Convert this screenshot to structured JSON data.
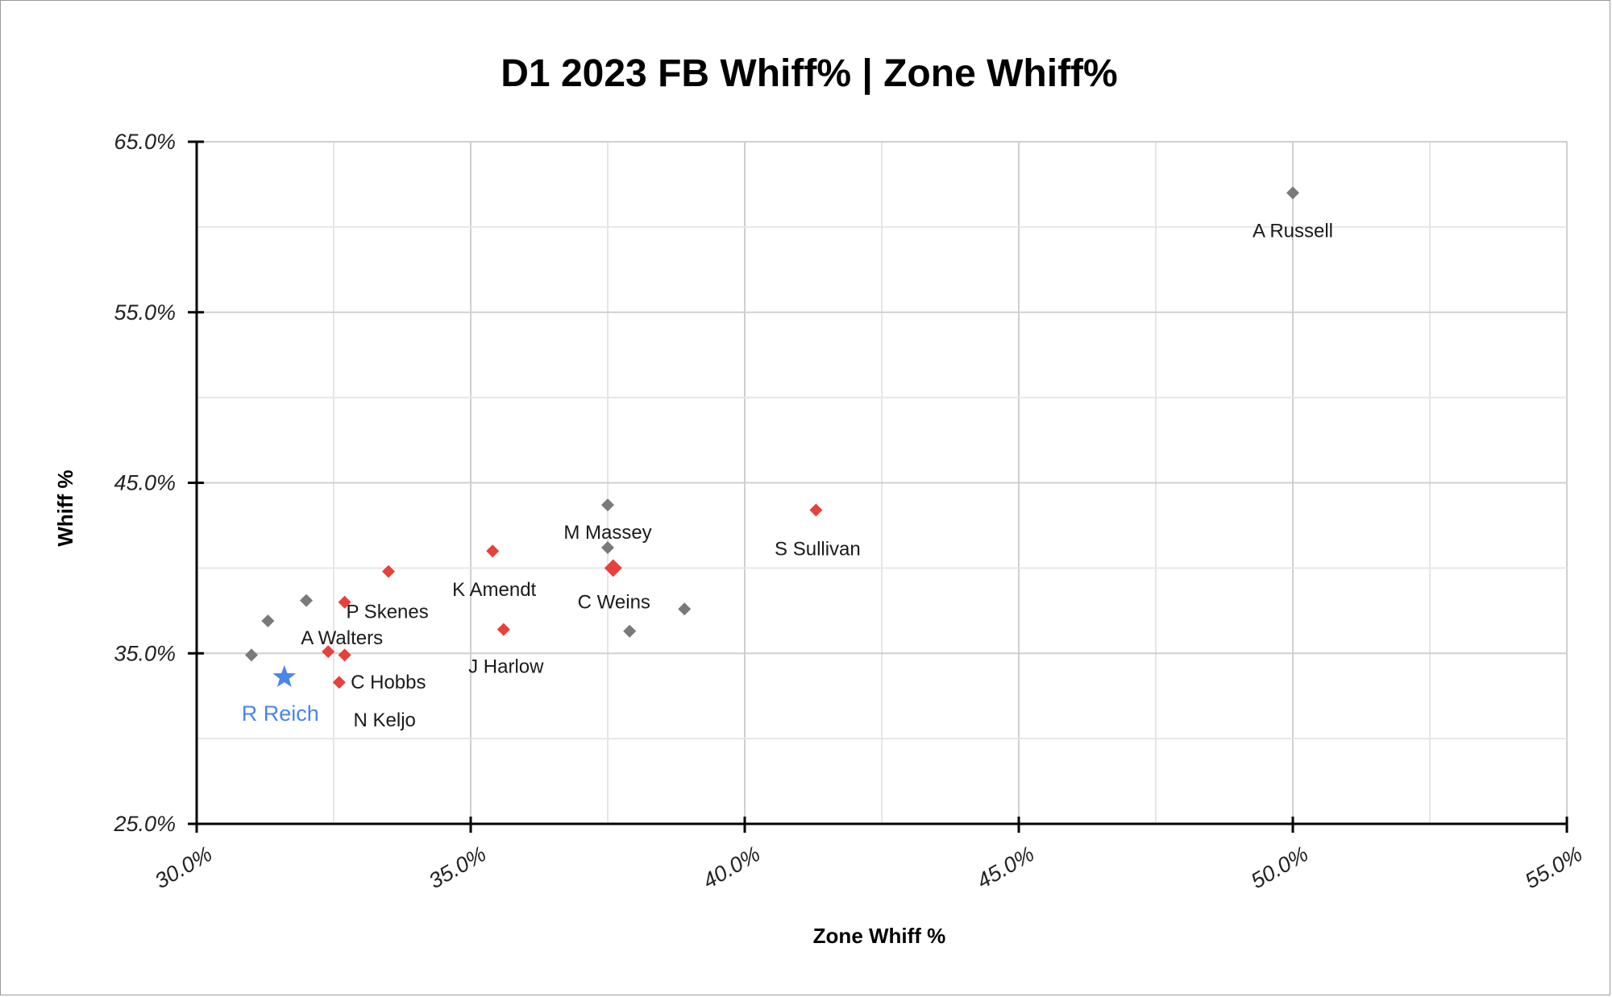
{
  "chart_data": {
    "type": "scatter",
    "title": "D1 2023 FB Whiff% | Zone Whiff%",
    "xlabel": "Zone Whiff %",
    "ylabel": "Whiff %",
    "xlim": [
      30,
      55
    ],
    "ylim": [
      25,
      65
    ],
    "x_ticks": [
      {
        "value": 30,
        "label": "30.0%"
      },
      {
        "value": 35,
        "label": "35.0%"
      },
      {
        "value": 40,
        "label": "40.0%"
      },
      {
        "value": 45,
        "label": "45.0%"
      },
      {
        "value": 50,
        "label": "50.0%"
      },
      {
        "value": 55,
        "label": "55.0%"
      }
    ],
    "y_ticks": [
      {
        "value": 25,
        "label": "25.0%"
      },
      {
        "value": 35,
        "label": "35.0%"
      },
      {
        "value": 45,
        "label": "45.0%"
      },
      {
        "value": 55,
        "label": "55.0%"
      },
      {
        "value": 65,
        "label": "65.0%"
      }
    ],
    "grid": true,
    "legend": "none",
    "colors": {
      "gray": "#7a7a7a",
      "red": "#e8403a",
      "blue": "#4a86e8",
      "grid": "#d9d9d9",
      "axis": "#000000"
    },
    "points": [
      {
        "x": 50.0,
        "y": 62.0,
        "color": "gray",
        "marker": "diamond",
        "label": "A Russell"
      },
      {
        "x": 37.5,
        "y": 43.7,
        "color": "gray",
        "marker": "diamond",
        "label": "M Massey"
      },
      {
        "x": 37.5,
        "y": 41.2,
        "color": "gray",
        "marker": "diamond",
        "label": ""
      },
      {
        "x": 38.9,
        "y": 37.6,
        "color": "gray",
        "marker": "diamond",
        "label": ""
      },
      {
        "x": 37.9,
        "y": 36.3,
        "color": "gray",
        "marker": "diamond",
        "label": ""
      },
      {
        "x": 32.0,
        "y": 38.1,
        "color": "gray",
        "marker": "diamond",
        "label": ""
      },
      {
        "x": 31.3,
        "y": 36.9,
        "color": "gray",
        "marker": "diamond",
        "label": ""
      },
      {
        "x": 31.0,
        "y": 34.9,
        "color": "gray",
        "marker": "diamond",
        "label": ""
      },
      {
        "x": 41.3,
        "y": 43.4,
        "color": "red",
        "marker": "diamond",
        "label": "S Sullivan"
      },
      {
        "x": 37.6,
        "y": 40.0,
        "color": "red",
        "marker": "diamond-large",
        "label": "C Weins"
      },
      {
        "x": 35.4,
        "y": 41.0,
        "color": "red",
        "marker": "diamond",
        "label": "K Amendt"
      },
      {
        "x": 35.6,
        "y": 36.4,
        "color": "red",
        "marker": "diamond",
        "label": "J Harlow"
      },
      {
        "x": 33.5,
        "y": 39.8,
        "color": "red",
        "marker": "diamond",
        "label": ""
      },
      {
        "x": 32.7,
        "y": 38.0,
        "color": "red",
        "marker": "diamond",
        "label": "P Skenes"
      },
      {
        "x": 32.4,
        "y": 35.1,
        "color": "red",
        "marker": "diamond",
        "label": "A Walters"
      },
      {
        "x": 32.7,
        "y": 34.9,
        "color": "red",
        "marker": "diamond",
        "label": ""
      },
      {
        "x": 32.6,
        "y": 33.3,
        "color": "red",
        "marker": "diamond",
        "label": "C Hobbs"
      },
      {
        "x": 31.6,
        "y": 33.6,
        "color": "blue",
        "marker": "star",
        "label": "R Reich"
      }
    ],
    "extra_labels": [
      {
        "text": "N Keljo",
        "x": 33.4,
        "y": 31.0
      }
    ]
  }
}
